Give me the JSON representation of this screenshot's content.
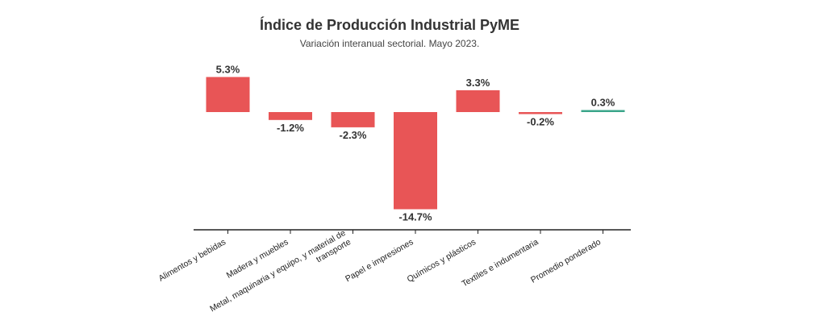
{
  "chart_data": {
    "type": "bar",
    "title": "Índice de Producción Industrial PyME",
    "subtitle": "Variación interanual sectorial. Mayo 2023.",
    "categories": [
      [
        "Alimentos y bebidas"
      ],
      [
        "Madera y muebles"
      ],
      [
        "Metal, maquinaria y equipo, y material de",
        "transporte"
      ],
      [
        "Papel e impresiones"
      ],
      [
        "Químicos y plásticos"
      ],
      [
        "Textiles e indumentaria"
      ],
      [
        "Promedio ponderado"
      ]
    ],
    "values": [
      5.3,
      -1.2,
      -2.3,
      -14.7,
      3.3,
      -0.2,
      0.3
    ],
    "labels": [
      "5.3%",
      "-1.2%",
      "-2.3%",
      "-14.7%",
      "3.3%",
      "-0.2%",
      "0.3%"
    ],
    "highlight_category": "Promedio ponderado",
    "xlabel": "",
    "ylabel": "",
    "ylim": [
      -17.8,
      5.3
    ],
    "grid": false,
    "colors": {
      "bar": "#e85556",
      "average": "#3aa58a",
      "axis": "#222222",
      "text": "#333333"
    }
  }
}
